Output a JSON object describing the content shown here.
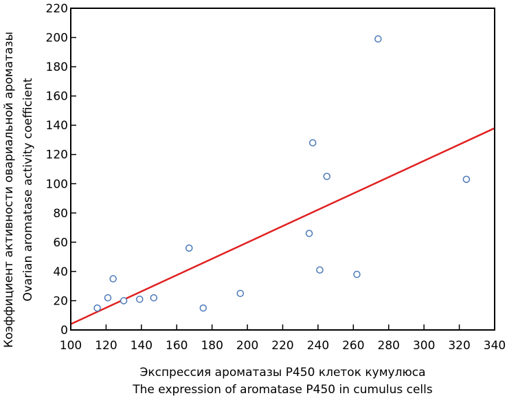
{
  "chart_data": {
    "type": "scatter",
    "xlabel": [
      "Экспрессия ароматазы P450 клеток кумулюса",
      "The expression of aromatase P450 in cumulus cells"
    ],
    "ylabel": [
      "Коэффициент активности овариальной ароматазы",
      "Ovarian aromatase activity coefficient"
    ],
    "xlim": [
      100,
      340
    ],
    "ylim": [
      0,
      220
    ],
    "xticks": [
      100,
      120,
      140,
      160,
      180,
      200,
      220,
      240,
      260,
      280,
      300,
      320,
      340
    ],
    "yticks": [
      0,
      20,
      40,
      60,
      80,
      100,
      120,
      140,
      160,
      180,
      200,
      220
    ],
    "grid": false,
    "points": [
      {
        "x": 115,
        "y": 15
      },
      {
        "x": 121,
        "y": 22
      },
      {
        "x": 124,
        "y": 35
      },
      {
        "x": 130,
        "y": 20
      },
      {
        "x": 139,
        "y": 21
      },
      {
        "x": 147,
        "y": 22
      },
      {
        "x": 167,
        "y": 56
      },
      {
        "x": 175,
        "y": 15
      },
      {
        "x": 196,
        "y": 25
      },
      {
        "x": 235,
        "y": 66
      },
      {
        "x": 237,
        "y": 128
      },
      {
        "x": 241,
        "y": 41
      },
      {
        "x": 245,
        "y": 105
      },
      {
        "x": 262,
        "y": 38
      },
      {
        "x": 274,
        "y": 199
      },
      {
        "x": 324,
        "y": 103
      }
    ],
    "fit_line": {
      "x": [
        100,
        340
      ],
      "y": [
        4,
        138
      ]
    },
    "colors": {
      "marker": "#4a78b8",
      "fit_line": "#e02020",
      "frame": "#000000"
    }
  }
}
